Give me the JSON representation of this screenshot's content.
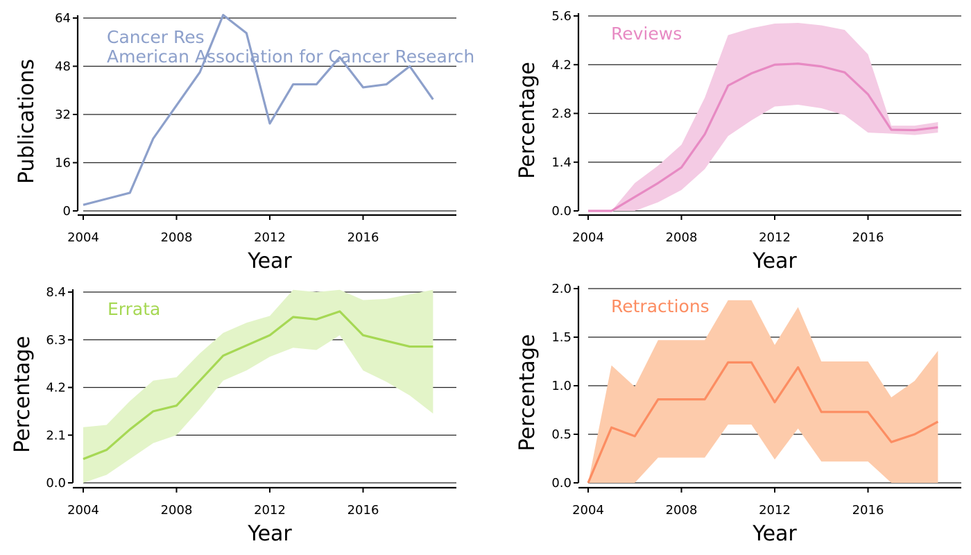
{
  "chart_data": [
    {
      "type": "line",
      "title": "",
      "xlabel": "Year",
      "ylabel": "Publications",
      "xlim": [
        2004,
        2020
      ],
      "ylim": [
        0,
        64
      ],
      "xticks": [
        2004,
        2008,
        2012,
        2016
      ],
      "yticks": [
        0,
        16,
        32,
        48,
        64
      ],
      "ytick_labels": [
        "0",
        "16",
        "32",
        "48",
        "64"
      ],
      "grid": "horizontal",
      "color": "#8da0cb",
      "annotations": [
        "Cancer Res",
        "American Association for Cancer Research"
      ],
      "x": [
        2004,
        2005,
        2006,
        2007,
        2008,
        2009,
        2010,
        2011,
        2012,
        2013,
        2014,
        2015,
        2016,
        2017,
        2018,
        2019
      ],
      "values": [
        2,
        4,
        6,
        24,
        35,
        46,
        65,
        59,
        29,
        42,
        42,
        51,
        41,
        42,
        48,
        37
      ]
    },
    {
      "type": "area",
      "title": "",
      "xlabel": "Year",
      "ylabel": "Percentage",
      "xlim": [
        2004,
        2020
      ],
      "ylim": [
        0,
        5.6
      ],
      "xticks": [
        2004,
        2008,
        2012,
        2016
      ],
      "yticks": [
        0,
        1.4,
        2.8,
        4.2,
        5.6
      ],
      "ytick_labels": [
        "0.0",
        "1.4",
        "2.8",
        "4.2",
        "5.6"
      ],
      "grid": "horizontal",
      "color": "#e78ac3",
      "band_color": "#f4cbe4",
      "annotations": [
        "Reviews"
      ],
      "x": [
        2004,
        2005,
        2006,
        2007,
        2008,
        2009,
        2010,
        2011,
        2012,
        2013,
        2014,
        2015,
        2016,
        2017,
        2018,
        2019
      ],
      "values": [
        0.0,
        0.0,
        0.4,
        0.8,
        1.25,
        2.2,
        3.6,
        3.95,
        4.2,
        4.23,
        4.15,
        3.98,
        3.35,
        2.33,
        2.32,
        2.4
      ],
      "lower": [
        0.0,
        0.0,
        0.0,
        0.25,
        0.6,
        1.2,
        2.15,
        2.6,
        3.0,
        3.05,
        2.95,
        2.75,
        2.25,
        2.22,
        2.18,
        2.25
      ],
      "upper": [
        0.0,
        0.0,
        0.8,
        1.3,
        1.9,
        3.25,
        5.05,
        5.25,
        5.38,
        5.4,
        5.33,
        5.2,
        4.5,
        2.45,
        2.45,
        2.55
      ]
    },
    {
      "type": "area",
      "title": "",
      "xlabel": "Year",
      "ylabel": "Percentage",
      "xlim": [
        2004,
        2020
      ],
      "ylim": [
        0,
        8.4
      ],
      "xticks": [
        2004,
        2008,
        2012,
        2016
      ],
      "yticks": [
        0,
        2.1,
        4.2,
        6.3,
        8.4
      ],
      "ytick_labels": [
        "0.0",
        "2.1",
        "4.2",
        "6.3",
        "8.4"
      ],
      "grid": "horizontal",
      "color": "#a6d854",
      "band_color": "#e3f4c8",
      "annotations": [
        "Errata"
      ],
      "x": [
        2004,
        2005,
        2006,
        2007,
        2008,
        2009,
        2010,
        2011,
        2012,
        2013,
        2014,
        2015,
        2016,
        2017,
        2018,
        2019
      ],
      "values": [
        1.05,
        1.45,
        2.35,
        3.15,
        3.4,
        4.5,
        5.6,
        6.05,
        6.5,
        7.3,
        7.2,
        7.55,
        6.5,
        6.25,
        6.0,
        6.0
      ],
      "lower": [
        0.0,
        0.35,
        1.05,
        1.75,
        2.1,
        3.25,
        4.5,
        4.95,
        5.55,
        5.95,
        5.85,
        6.5,
        4.95,
        4.45,
        3.85,
        3.05
      ],
      "upper": [
        2.45,
        2.55,
        3.6,
        4.5,
        4.65,
        5.7,
        6.6,
        7.05,
        7.35,
        8.5,
        8.4,
        8.5,
        8.05,
        8.1,
        8.3,
        8.5
      ]
    },
    {
      "type": "area",
      "title": "",
      "xlabel": "Year",
      "ylabel": "Percentage",
      "xlim": [
        2004,
        2020
      ],
      "ylim": [
        0,
        2.0
      ],
      "xticks": [
        2004,
        2008,
        2012,
        2016
      ],
      "yticks": [
        0,
        0.5,
        1.0,
        1.5,
        2.0
      ],
      "ytick_labels": [
        "0.0",
        "0.5",
        "1.0",
        "1.5",
        "2.0"
      ],
      "grid": "horizontal",
      "color": "#fc8d62",
      "band_color": "#fdcbab",
      "annotations": [
        "Retractions"
      ],
      "x": [
        2004,
        2005,
        2006,
        2007,
        2008,
        2009,
        2010,
        2011,
        2012,
        2013,
        2014,
        2015,
        2016,
        2017,
        2018,
        2019
      ],
      "values": [
        0.0,
        0.57,
        0.48,
        0.86,
        0.86,
        0.86,
        1.24,
        1.24,
        0.83,
        1.19,
        0.73,
        0.73,
        0.73,
        0.42,
        0.5,
        0.63
      ],
      "lower": [
        0.0,
        0.0,
        0.0,
        0.26,
        0.26,
        0.26,
        0.6,
        0.6,
        0.24,
        0.56,
        0.22,
        0.22,
        0.22,
        0.0,
        0.0,
        0.0
      ],
      "upper": [
        0.0,
        1.21,
        0.99,
        1.47,
        1.47,
        1.47,
        1.88,
        1.88,
        1.42,
        1.81,
        1.25,
        1.25,
        1.25,
        0.88,
        1.05,
        1.36
      ]
    }
  ]
}
